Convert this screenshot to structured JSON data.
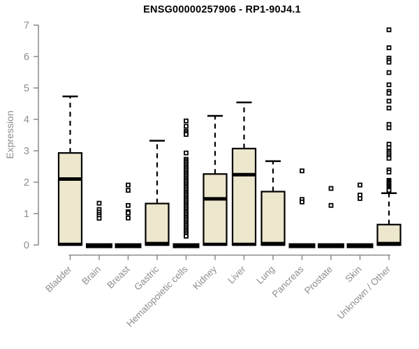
{
  "chart_data": {
    "type": "boxplot",
    "title": "ENSG00000257906 - RP1-90J4.1",
    "ylabel": "Expression",
    "ylim": [
      0,
      7
    ],
    "yticks": [
      0,
      1,
      2,
      3,
      4,
      5,
      6,
      7
    ],
    "grid": false,
    "legend": "none",
    "marker": "open-square",
    "colors": {
      "box_fill": "#ECE7CD",
      "box_stroke": "#000000",
      "median": "#000000",
      "axis": "#8a8a8a",
      "tick_label": "#8e8e8e",
      "title": "#000000"
    },
    "categories": [
      "Bladder",
      "Brain",
      "Breast",
      "Gastric",
      "Hematopoietic cells",
      "Kidney",
      "Liver",
      "Lung",
      "Pancreas",
      "Prostate",
      "Skin",
      "Unknown / Other"
    ],
    "boxes": [
      {
        "category": "Bladder",
        "collapsed": false,
        "lower_whisker": 0,
        "q1": 0,
        "median": 2.1,
        "q3": 2.93,
        "upper_whisker": 4.73,
        "outliers": []
      },
      {
        "category": "Brain",
        "collapsed": true,
        "lower_whisker": 0,
        "q1": 0,
        "median": 0,
        "q3": 0,
        "upper_whisker": 0,
        "outliers": [
          1.33,
          1.13,
          1.05,
          0.98,
          0.92,
          0.85
        ]
      },
      {
        "category": "Breast",
        "collapsed": true,
        "lower_whisker": 0,
        "q1": 0,
        "median": 0,
        "q3": 0,
        "upper_whisker": 0,
        "outliers": [
          1.91,
          1.74,
          1.26,
          1.06,
          1.02,
          0.86
        ]
      },
      {
        "category": "Gastric",
        "collapsed": false,
        "lower_whisker": 0,
        "q1": 0,
        "median": 0,
        "q3": 1.32,
        "upper_whisker": 3.32,
        "outliers": []
      },
      {
        "category": "Hematopoietic cells",
        "collapsed": true,
        "lower_whisker": 0,
        "q1": 0,
        "median": 0,
        "q3": 0,
        "upper_whisker": 0,
        "outliers": [
          3.95,
          3.78,
          3.62,
          3.57,
          3.52,
          2.93,
          2.73,
          2.68,
          2.63,
          2.58,
          2.53,
          2.48,
          2.43,
          2.38,
          2.33,
          2.28,
          2.23,
          2.18,
          2.13,
          2.08,
          2.03,
          1.98,
          1.93,
          1.88,
          1.83,
          1.78,
          1.73,
          1.68,
          1.63,
          1.58,
          1.53,
          1.48,
          1.43,
          1.38,
          1.33,
          1.28,
          1.23,
          1.18,
          1.13,
          1.08,
          1.03,
          0.98,
          0.93,
          0.88,
          0.83,
          0.78,
          0.73,
          0.68,
          0.63,
          0.58,
          0.53,
          0.48,
          0.43,
          0.38,
          0.33,
          0.28
        ]
      },
      {
        "category": "Kidney",
        "collapsed": false,
        "lower_whisker": 0,
        "q1": 0,
        "median": 1.47,
        "q3": 2.26,
        "upper_whisker": 4.11,
        "outliers": []
      },
      {
        "category": "Liver",
        "collapsed": false,
        "lower_whisker": 0,
        "q1": 0,
        "median": 2.24,
        "q3": 3.07,
        "upper_whisker": 4.54,
        "outliers": []
      },
      {
        "category": "Lung",
        "collapsed": false,
        "lower_whisker": 0,
        "q1": 0,
        "median": 0,
        "q3": 1.7,
        "upper_whisker": 2.67,
        "outliers": []
      },
      {
        "category": "Pancreas",
        "collapsed": true,
        "lower_whisker": 0,
        "q1": 0,
        "median": 0,
        "q3": 0,
        "upper_whisker": 0,
        "outliers": [
          2.36,
          1.45,
          1.37
        ]
      },
      {
        "category": "Prostate",
        "collapsed": true,
        "lower_whisker": 0,
        "q1": 0,
        "median": 0,
        "q3": 0,
        "upper_whisker": 0,
        "outliers": [
          1.8,
          1.26
        ]
      },
      {
        "category": "Skin",
        "collapsed": true,
        "lower_whisker": 0,
        "q1": 0,
        "median": 0,
        "q3": 0,
        "upper_whisker": 0,
        "outliers": [
          1.91,
          1.59,
          1.48
        ]
      },
      {
        "category": "Unknown / Other",
        "collapsed": false,
        "lower_whisker": 0,
        "q1": 0,
        "median": 0,
        "q3": 0.65,
        "upper_whisker": 1.65,
        "outliers": [
          6.85,
          6.28,
          5.95,
          5.88,
          5.82,
          5.49,
          5.1,
          4.89,
          4.83,
          4.58,
          4.36,
          3.84,
          3.73,
          3.21,
          3.1,
          2.98,
          2.93,
          2.87,
          2.81,
          2.76,
          2.39,
          2.32,
          2.06,
          2.02,
          1.98,
          1.94,
          1.9,
          1.86,
          1.82,
          1.78,
          1.74
        ]
      }
    ]
  }
}
